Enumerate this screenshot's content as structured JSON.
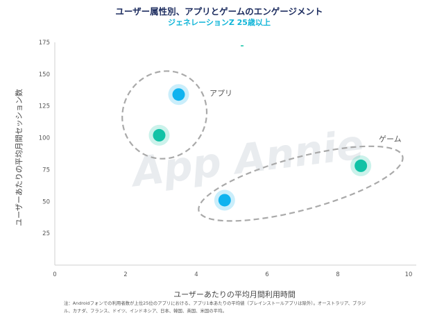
{
  "chart_data": {
    "type": "scatter",
    "title": "ユーザー属性別、アプリとゲームのエンゲージメント",
    "subtitle": "ジェネレーションZ 25歳以上",
    "xlabel": "ユーザーあたりの平均月間利用時間",
    "ylabel": "ユーザーあたりの平均月間セッション数",
    "xlim": [
      0,
      10
    ],
    "ylim": [
      0,
      175
    ],
    "x_ticks": [
      "0",
      "2",
      "4",
      "6",
      "8",
      "10"
    ],
    "y_ticks": [
      "25",
      "50",
      "75",
      "100",
      "125",
      "150",
      "175"
    ],
    "grid": false,
    "points": [
      {
        "x": 3.5,
        "y": 134,
        "color": "#0fb3ef"
      },
      {
        "x": 2.95,
        "y": 102,
        "color": "#11c2a6"
      },
      {
        "x": 4.8,
        "y": 51,
        "color": "#0fb3ef"
      },
      {
        "x": 8.65,
        "y": 78,
        "color": "#11c2a6"
      }
    ],
    "groups": [
      {
        "label": "アプリ"
      },
      {
        "label": "ゲーム"
      }
    ],
    "watermark": "App Annie",
    "footnote": [
      "注：Androidフォンでの利用者数が上位25位のアプリにおける、アプリ1本あたりの平均値（プレインストールアプリは除外）。オーストラリア、ブラジ",
      "ル、カナダ、フランス、ドイツ、インドネシア、日本、韓国、英国、米国の平均。"
    ]
  }
}
